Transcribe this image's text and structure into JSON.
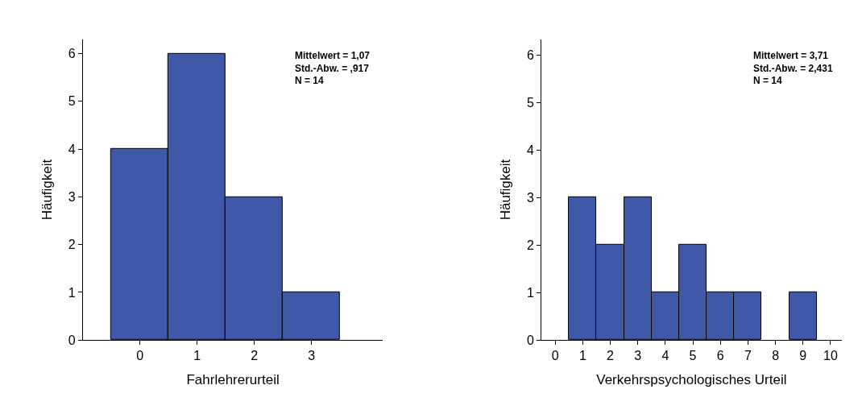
{
  "chart_data": [
    {
      "type": "histogram",
      "xlabel": "Fahrlehrerurteil",
      "ylabel": "Häufigkeit",
      "bins": [
        -0.5,
        0.5,
        1.5,
        2.5,
        3.5
      ],
      "values": [
        4,
        6,
        3,
        1
      ],
      "color": "#3f58a8",
      "xlim": [
        -1,
        4.25
      ],
      "xticks": [
        0,
        1,
        2,
        3
      ],
      "ylim": [
        0,
        6.3
      ],
      "yticks": [
        0,
        1,
        2,
        3,
        4,
        5,
        6
      ],
      "annotations": [
        "Mittelwert = 1,07",
        "Std.-Abw. = ,917",
        "N = 14"
      ]
    },
    {
      "type": "histogram",
      "xlabel": "Verkehrspsychologisches Urteil",
      "ylabel": "Häufigkeit",
      "bins": [
        0.5,
        1.5,
        2.5,
        3.5,
        4.5,
        5.5,
        6.5,
        7.5,
        8.5,
        9.5
      ],
      "values": [
        3,
        2,
        3,
        1,
        2,
        1,
        1,
        0,
        1
      ],
      "color": "#3f58a8",
      "xlim": [
        -0.5,
        10.4
      ],
      "xticks": [
        0,
        1,
        2,
        3,
        4,
        5,
        6,
        7,
        8,
        9,
        10
      ],
      "ylim": [
        0,
        6.33
      ],
      "yticks": [
        0,
        1,
        2,
        3,
        4,
        5,
        6
      ],
      "annotations": [
        "Mittelwert = 3,71",
        "Std.-Abw. = 2,431",
        "N = 14"
      ]
    }
  ]
}
